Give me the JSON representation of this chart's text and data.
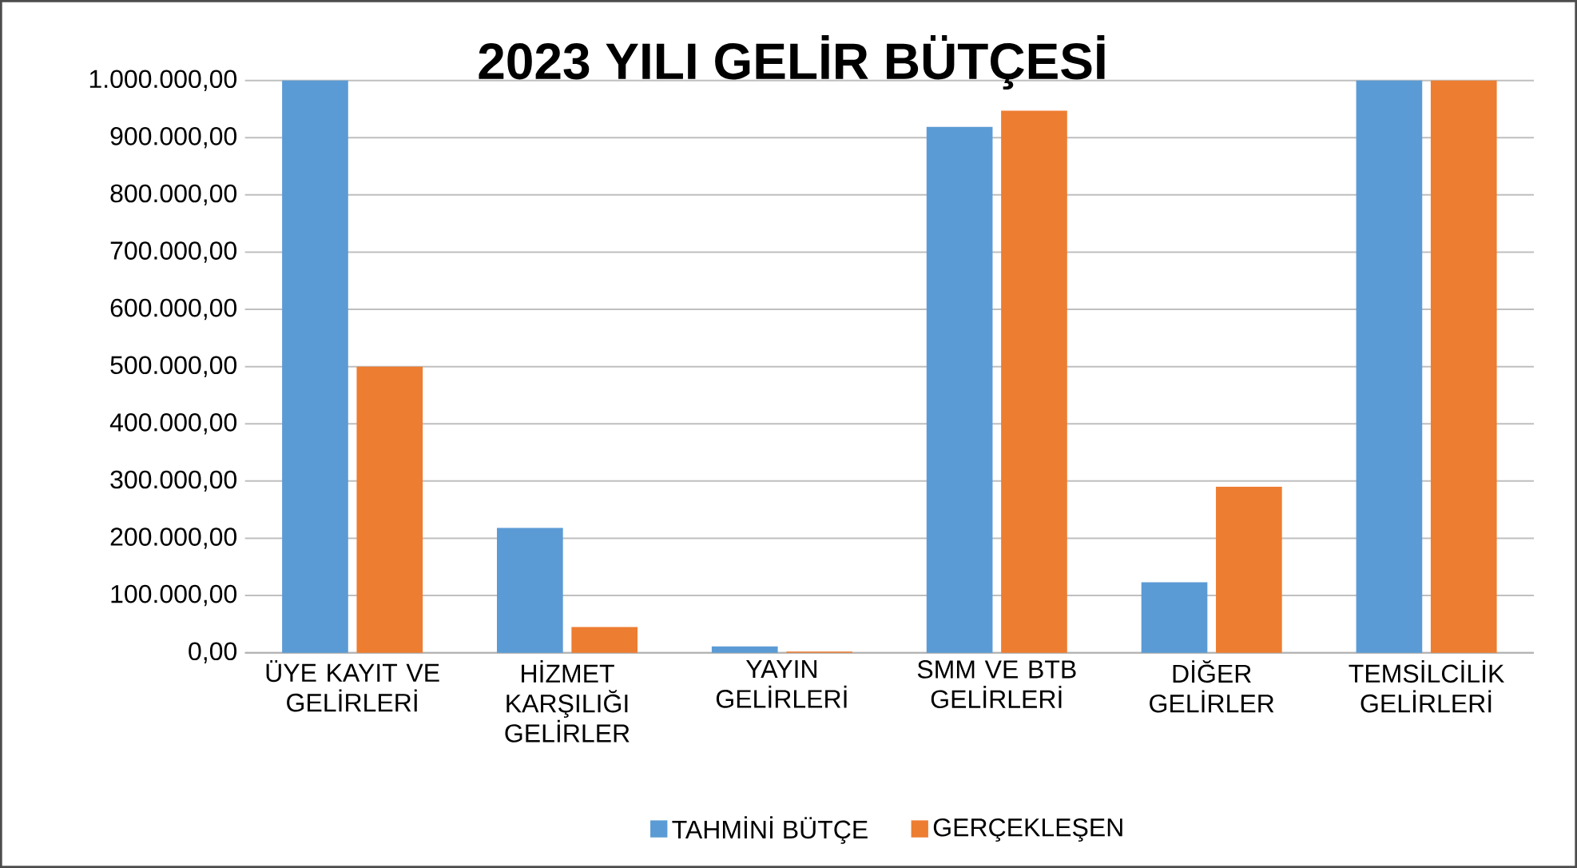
{
  "chart_data": {
    "type": "bar",
    "title": "2023 YILI GELİR BÜTÇESİ",
    "categories": [
      "ÜYE KAYIT VE GELİRLERİ",
      "HİZMET KARŞILIĞI GELİRLER",
      "YAYIN GELİRLERİ",
      "SMM VE BTB GELİRLERİ",
      "DİĞER GELİRLER",
      "TEMSİLCİLİK GELİRLERİ"
    ],
    "series": [
      {
        "name": "TAHMİNİ BÜTÇE",
        "color": "#5b9bd5",
        "values": [
          1000000,
          218000,
          11000,
          919000,
          123000,
          1000000
        ]
      },
      {
        "name": "GERÇEKLEŞEN",
        "color": "#ed7d31",
        "values": [
          500000,
          45000,
          2000,
          947000,
          290000,
          1000000
        ]
      }
    ],
    "ylim": [
      0,
      1000000
    ],
    "yticks": [
      {
        "value": 0,
        "label": "0,00"
      },
      {
        "value": 100000,
        "label": "100.000,00"
      },
      {
        "value": 200000,
        "label": "200.000,00"
      },
      {
        "value": 300000,
        "label": "300.000,00"
      },
      {
        "value": 400000,
        "label": "400.000,00"
      },
      {
        "value": 500000,
        "label": "500.000,00"
      },
      {
        "value": 600000,
        "label": "600.000,00"
      },
      {
        "value": 700000,
        "label": "700.000,00"
      },
      {
        "value": 800000,
        "label": "800.000,00"
      },
      {
        "value": 900000,
        "label": "900.000,00"
      },
      {
        "value": 1000000,
        "label": "1.000.000,00"
      }
    ],
    "grid": "y",
    "legend": "bottom"
  }
}
